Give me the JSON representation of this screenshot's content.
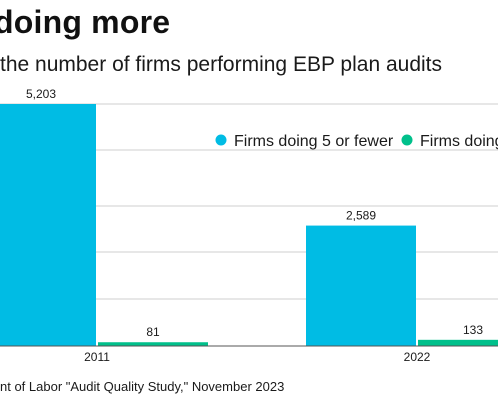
{
  "title": "doing more",
  "subtitle": "the number of firms performing EBP plan audits",
  "source": "nt of Labor \"Audit Quality Study,\" November 2023",
  "colors": {
    "series1": "#00bce4",
    "series2": "#00c08b",
    "grid": "#cfcfcf",
    "axis": "#555555"
  },
  "chart_data": {
    "type": "bar",
    "categories": [
      "2011",
      "2022"
    ],
    "series": [
      {
        "name": "Firms doing 5 or fewer",
        "values": [
          5203,
          2589
        ],
        "labels": [
          "5,203",
          "2,589"
        ],
        "color": "#00bce4"
      },
      {
        "name": "Firms doing",
        "values": [
          81,
          133
        ],
        "labels": [
          "81",
          "133"
        ],
        "color": "#00c08b"
      }
    ],
    "ylim": [
      0,
      5203
    ],
    "grid": true,
    "legend_position": "top-right"
  }
}
